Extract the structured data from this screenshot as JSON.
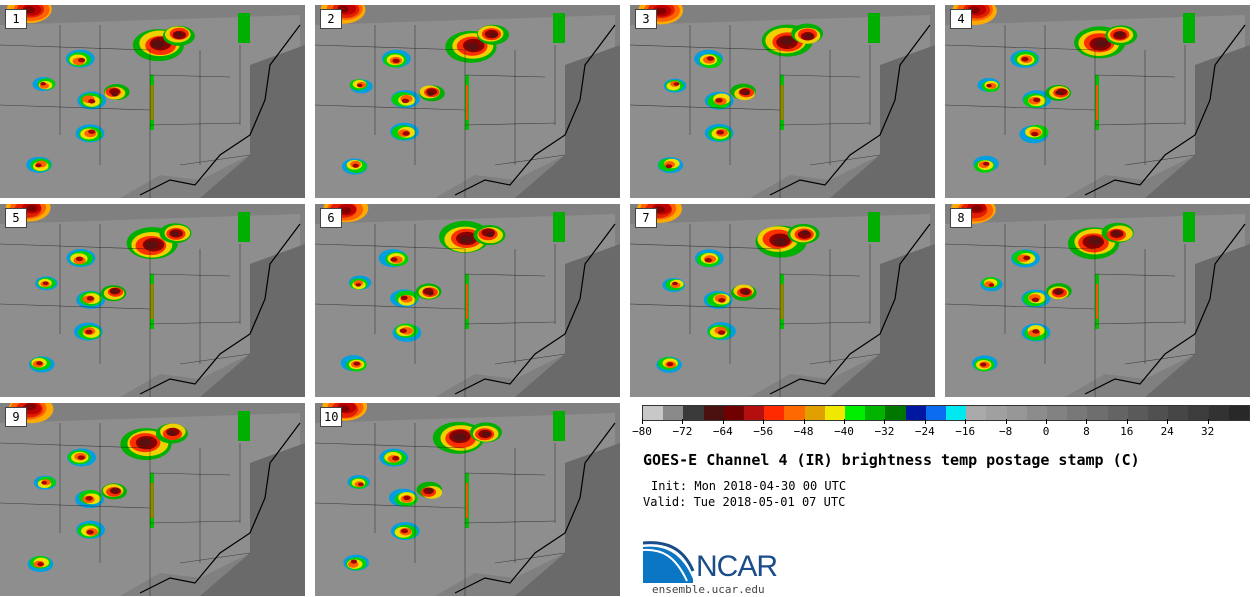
{
  "panels": [
    {
      "label": "1",
      "row": 0,
      "col": 0
    },
    {
      "label": "2",
      "row": 0,
      "col": 1
    },
    {
      "label": "3",
      "row": 0,
      "col": 2
    },
    {
      "label": "4",
      "row": 0,
      "col": 3
    },
    {
      "label": "5",
      "row": 1,
      "col": 0
    },
    {
      "label": "6",
      "row": 1,
      "col": 1
    },
    {
      "label": "7",
      "row": 1,
      "col": 2
    },
    {
      "label": "8",
      "row": 1,
      "col": 3
    },
    {
      "label": "9",
      "row": 2,
      "col": 0
    },
    {
      "label": "10",
      "row": 2,
      "col": 1
    }
  ],
  "colorbar": {
    "colors": [
      "#c8c8c8",
      "#8a8a8a",
      "#3a3a3a",
      "#4a1010",
      "#6e0000",
      "#b40e0e",
      "#ff2a00",
      "#ff6a00",
      "#e0a000",
      "#f0e800",
      "#00ee00",
      "#00b400",
      "#007800",
      "#0018a0",
      "#0c6cf0",
      "#00e8f0",
      "#aaaaaa",
      "#a0a0a0",
      "#969696",
      "#8c8c8c",
      "#828282",
      "#787878",
      "#6e6e6e",
      "#646464",
      "#5a5a5a",
      "#505050",
      "#464646",
      "#3c3c3c",
      "#323232",
      "#282828"
    ],
    "ticks": [
      {
        "value": -80,
        "label": "−80"
      },
      {
        "value": -72,
        "label": "−72"
      },
      {
        "value": -64,
        "label": "−64"
      },
      {
        "value": -56,
        "label": "−56"
      },
      {
        "value": -48,
        "label": "−48"
      },
      {
        "value": -40,
        "label": "−40"
      },
      {
        "value": -32,
        "label": "−32"
      },
      {
        "value": -24,
        "label": "−24"
      },
      {
        "value": -16,
        "label": "−16"
      },
      {
        "value": -8,
        "label": "−8"
      },
      {
        "value": 0,
        "label": "0"
      },
      {
        "value": 8,
        "label": "8"
      },
      {
        "value": 16,
        "label": "16"
      },
      {
        "value": 24,
        "label": "24"
      },
      {
        "value": 32,
        "label": "32"
      }
    ],
    "min": -80,
    "max": 40
  },
  "title": "GOES-E Channel 4 (IR) brightness temp postage stamp (C)",
  "init": "Init: Mon 2018-04-30 00 UTC",
  "valid": "Valid: Tue 2018-05-01 07 UTC",
  "logo": {
    "text": "NCAR",
    "color": "#1a4c8a"
  },
  "site": "ensemble.ucar.edu"
}
